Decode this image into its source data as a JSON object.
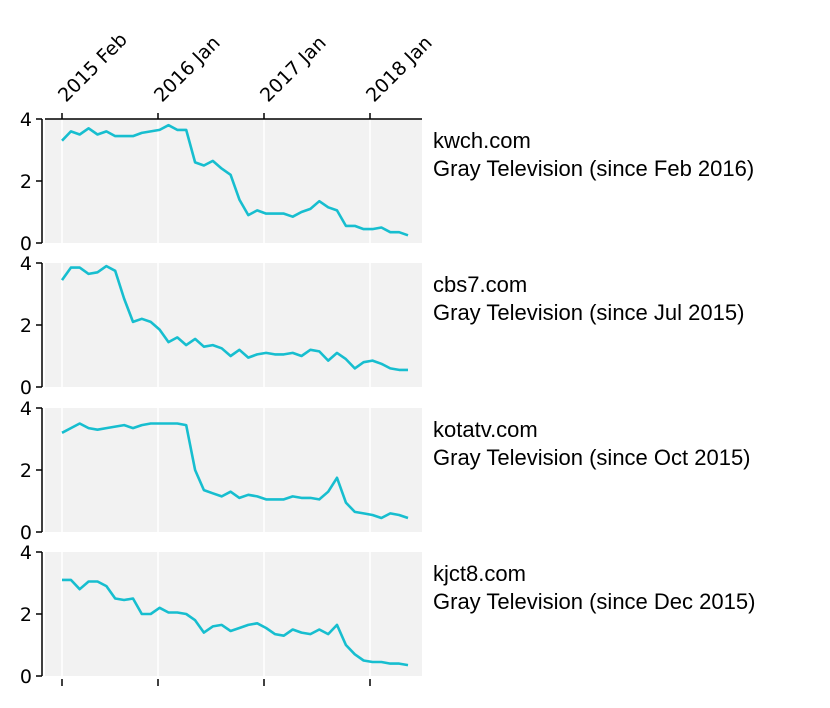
{
  "chart_data": [
    {
      "type": "line",
      "site": "kwch.com",
      "owner": "Gray Television (since Feb 2016)",
      "x_ticks": [
        "2015 Feb",
        "2016 Jan",
        "2017 Jan",
        "2018 Jan"
      ],
      "y_ticks": [
        "0",
        "2",
        "4"
      ],
      "ylim": [
        0,
        4
      ],
      "color": "#17becf",
      "background": "#f2f2f2",
      "grid": "vertical, white",
      "series": [
        {
          "values": [
            3.3,
            3.6,
            3.5,
            3.7,
            3.5,
            3.6,
            3.45,
            3.45,
            3.45,
            3.55,
            3.6,
            3.65,
            3.8,
            3.65,
            3.65,
            2.6,
            2.5,
            2.65,
            2.4,
            2.2,
            1.4,
            0.9,
            1.05,
            0.95,
            0.95,
            0.95,
            0.85,
            1.0,
            1.1,
            1.35,
            1.15,
            1.05,
            0.55,
            0.55,
            0.45,
            0.45,
            0.5,
            0.35,
            0.35,
            0.25
          ]
        }
      ]
    },
    {
      "type": "line",
      "site": "cbs7.com",
      "owner": "Gray Television (since Jul 2015)",
      "y_ticks": [
        "0",
        "2",
        "4"
      ],
      "ylim": [
        0,
        4
      ],
      "color": "#17becf",
      "series": [
        {
          "values": [
            3.45,
            3.85,
            3.85,
            3.65,
            3.7,
            3.9,
            3.75,
            2.85,
            2.1,
            2.2,
            2.1,
            1.85,
            1.45,
            1.6,
            1.35,
            1.55,
            1.3,
            1.35,
            1.25,
            1.0,
            1.2,
            0.95,
            1.05,
            1.1,
            1.05,
            1.05,
            1.1,
            1.0,
            1.2,
            1.15,
            0.85,
            1.1,
            0.9,
            0.6,
            0.8,
            0.85,
            0.75,
            0.6,
            0.55,
            0.55
          ]
        }
      ]
    },
    {
      "type": "line",
      "site": "kotatv.com",
      "owner": "Gray Television (since Oct 2015)",
      "y_ticks": [
        "0",
        "2",
        "4"
      ],
      "ylim": [
        0,
        4
      ],
      "color": "#17becf",
      "series": [
        {
          "values": [
            3.2,
            3.35,
            3.5,
            3.35,
            3.3,
            3.35,
            3.4,
            3.45,
            3.35,
            3.45,
            3.5,
            3.5,
            3.5,
            3.5,
            3.45,
            2.0,
            1.35,
            1.25,
            1.15,
            1.3,
            1.1,
            1.2,
            1.15,
            1.05,
            1.05,
            1.05,
            1.15,
            1.1,
            1.1,
            1.05,
            1.3,
            1.75,
            0.95,
            0.65,
            0.6,
            0.55,
            0.45,
            0.6,
            0.55,
            0.45
          ]
        }
      ]
    },
    {
      "type": "line",
      "site": "kjct8.com",
      "owner": "Gray Television (since Dec 2015)",
      "y_ticks": [
        "0",
        "2",
        "4"
      ],
      "ylim": [
        0,
        4
      ],
      "color": "#17becf",
      "series": [
        {
          "values": [
            3.1,
            3.1,
            2.8,
            3.05,
            3.05,
            2.9,
            2.5,
            2.45,
            2.5,
            2.0,
            2.0,
            2.2,
            2.05,
            2.05,
            2.0,
            1.8,
            1.4,
            1.6,
            1.65,
            1.45,
            1.55,
            1.65,
            1.7,
            1.55,
            1.35,
            1.3,
            1.5,
            1.4,
            1.35,
            1.5,
            1.35,
            1.65,
            1.0,
            0.7,
            0.5,
            0.45,
            0.45,
            0.4,
            0.4,
            0.35
          ]
        }
      ]
    }
  ]
}
